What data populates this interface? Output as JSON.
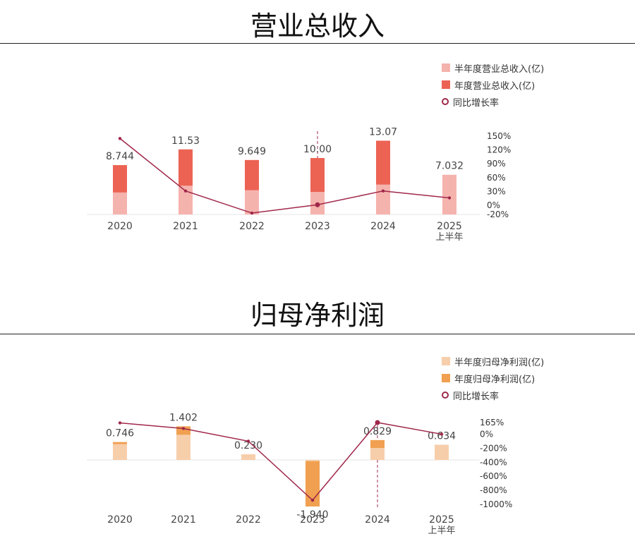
{
  "chart_data": [
    {
      "type": "bar",
      "title": "营业总收入",
      "categories": [
        "2020",
        "2021",
        "2022",
        "2023",
        "2024",
        "2025"
      ],
      "category_sublabels": [
        "",
        "",
        "",
        "",
        "",
        "上半年"
      ],
      "series": [
        {
          "name": "半年度营业总收入(亿)",
          "color": "#f5b3ad",
          "values": [
            3.9,
            5.1,
            4.3,
            4.0,
            5.3,
            7.032
          ]
        },
        {
          "name": "年度营业总收入(亿)",
          "color": "#ec6354",
          "values": [
            8.744,
            11.53,
            9.649,
            10.0,
            13.07,
            null
          ]
        },
        {
          "name": "同比增长率",
          "color": "#a0284a",
          "type": "line",
          "axis": "right",
          "values": [
            145,
            31,
            -17,
            1,
            31,
            16
          ]
        }
      ],
      "data_labels": [
        "8.744",
        "11.53",
        "9.649",
        "10.00",
        "13.07",
        "7.032"
      ],
      "y_right_ticks": [
        "150%",
        "120%",
        "90%",
        "60%",
        "30%",
        "0%",
        "-20%"
      ],
      "y_right_tick_values": [
        150,
        120,
        90,
        60,
        30,
        0,
        -20
      ],
      "y_right_range": [
        -20,
        150
      ],
      "ylim": [
        0,
        16
      ],
      "highlight_category": "2023",
      "legend_position": "top-right"
    },
    {
      "type": "bar",
      "title": "归母净利润",
      "categories": [
        "2020",
        "2021",
        "2022",
        "2023",
        "2024",
        "2025"
      ],
      "category_sublabels": [
        "",
        "",
        "",
        "",
        "",
        "上半年"
      ],
      "series": [
        {
          "name": "半年度归母净利润(亿)",
          "color": "#f7ceaa",
          "values": [
            0.66,
            1.05,
            0.23,
            -0.05,
            0.5,
            0.634
          ]
        },
        {
          "name": "年度归母净利润(亿)",
          "color": "#f0a050",
          "values": [
            0.746,
            1.402,
            0.23,
            -1.94,
            0.829,
            null
          ]
        },
        {
          "name": "同比增长率",
          "color": "#a0284a",
          "type": "line",
          "axis": "right",
          "values": [
            160,
            80,
            -100,
            -940,
            165,
            0
          ]
        }
      ],
      "data_labels": [
        "0.746",
        "1.402",
        "0.230",
        "-1.940",
        "0.829",
        "0.634"
      ],
      "y_right_ticks": [
        "165%",
        "0%",
        "-200%",
        "-400%",
        "-600%",
        "-800%",
        "-1000%"
      ],
      "y_right_tick_values": [
        165,
        0,
        -200,
        -400,
        -600,
        -800,
        -1000
      ],
      "y_right_range": [
        -1000,
        165
      ],
      "ylim": [
        -2,
        1.6
      ],
      "highlight_category": "2024",
      "legend_position": "top-right"
    }
  ]
}
